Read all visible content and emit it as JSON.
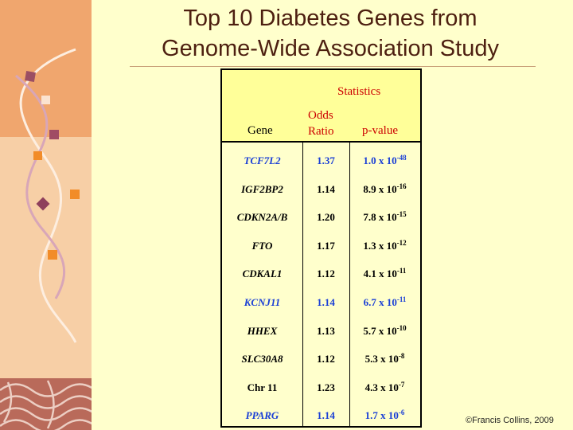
{
  "title": {
    "line1": "Top 10 Diabetes Genes from",
    "line2": "Genome-Wide Association Study"
  },
  "table": {
    "statistics_label": "Statistics",
    "gene_header": "Gene",
    "odds_header_line1": "Odds",
    "odds_header_line2": "Ratio",
    "pvalue_header": "p-value",
    "rows": [
      {
        "gene": "TCF7L2",
        "odds": "1.37",
        "p_mantissa": "1.0 x 10",
        "p_exp": "-48",
        "highlight": true
      },
      {
        "gene": "IGF2BP2",
        "odds": "1.14",
        "p_mantissa": "8.9 x 10",
        "p_exp": "-16",
        "highlight": false
      },
      {
        "gene": "CDKN2A/B",
        "odds": "1.20",
        "p_mantissa": "7.8 x 10",
        "p_exp": "-15",
        "highlight": false
      },
      {
        "gene": "FTO",
        "odds": "1.17",
        "p_mantissa": "1.3 x 10",
        "p_exp": "-12",
        "highlight": false
      },
      {
        "gene": "CDKAL1",
        "odds": "1.12",
        "p_mantissa": "4.1 x 10",
        "p_exp": "-11",
        "highlight": false
      },
      {
        "gene": "KCNJ11",
        "odds": "1.14",
        "p_mantissa": "6.7 x 10",
        "p_exp": "-11",
        "highlight": true
      },
      {
        "gene": "HHEX",
        "odds": "1.13",
        "p_mantissa": "5.7 x 10",
        "p_exp": "-10",
        "highlight": false
      },
      {
        "gene": "SLC30A8",
        "odds": "1.12",
        "p_mantissa": "5.3 x 10",
        "p_exp": "-8",
        "highlight": false
      },
      {
        "gene": "Chr 11",
        "odds": "1.23",
        "p_mantissa": "4.3 x 10",
        "p_exp": "-7",
        "highlight": false,
        "upright": true
      },
      {
        "gene": "PPARG",
        "odds": "1.14",
        "p_mantissa": "1.7 x 10",
        "p_exp": "-6",
        "highlight": true
      }
    ]
  },
  "copyright": "©Francis Collins, 2009",
  "colors": {
    "highlight": "#1a3fd6",
    "normal": "#000000",
    "header_red": "#cc0000"
  }
}
